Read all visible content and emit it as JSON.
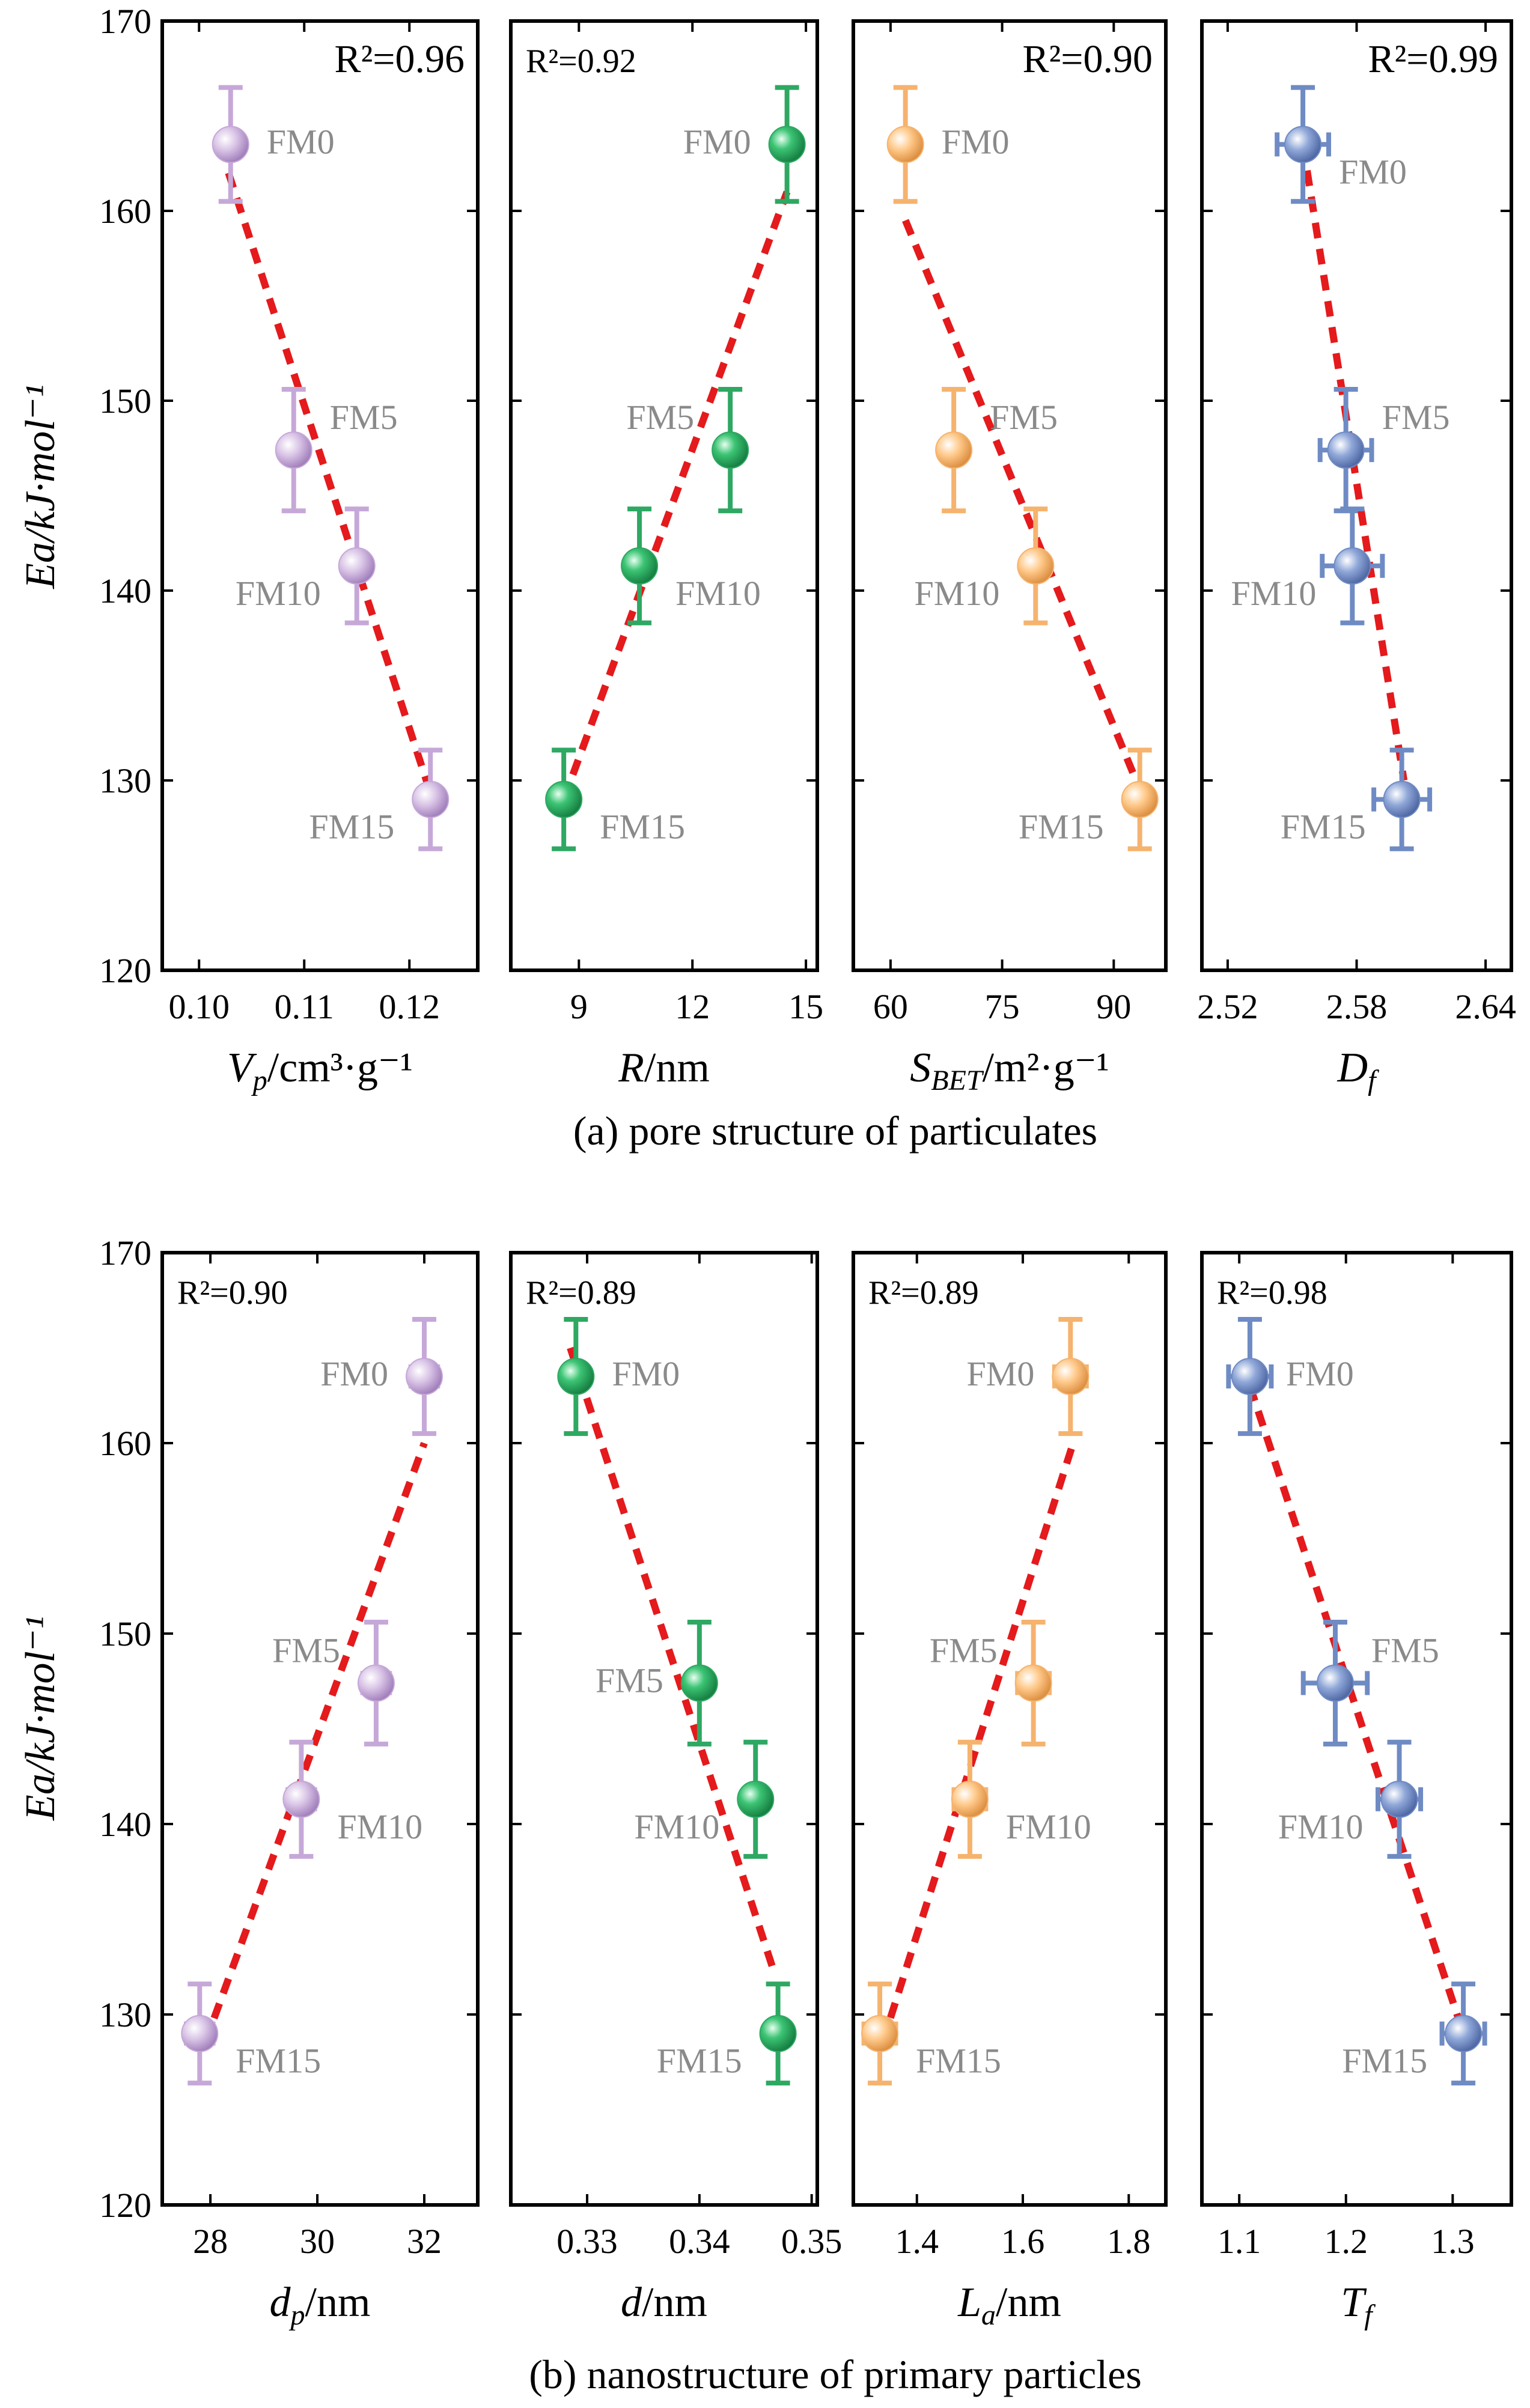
{
  "figure": {
    "y_axis_label": "Ea/kJ·mol⁻¹",
    "colors": {
      "purple": "#c6a8d8",
      "green": "#2ea862",
      "orange": "#f5b36e",
      "blue": "#6f8bc4",
      "fit_line": "#e41a1c"
    }
  },
  "rows": [
    {
      "caption": "(a)  pore structure of particulates",
      "ylim": [
        120,
        170
      ],
      "yticks": [
        120,
        130,
        140,
        150,
        160,
        170
      ],
      "panels": [
        {
          "color": "purple",
          "xlabel": "V_p/cm³·g⁻¹",
          "xlabel_main": "V",
          "xlabel_sub": "p",
          "xlabel_rest": "/cm³·g⁻¹",
          "xlim": [
            0.0965,
            0.1265
          ],
          "xticks": [
            0.1,
            0.11,
            0.12
          ],
          "xtick_labels": [
            "0.10",
            "0.11",
            "0.12"
          ],
          "r2": "R²=0.96",
          "r2_big": true,
          "fit": [
            [
              0.1028,
              162
            ],
            [
              0.1222,
              129
            ]
          ]
        },
        {
          "color": "green",
          "xlabel": "R/nm",
          "xlabel_main": "R",
          "xlabel_sub": "",
          "xlabel_rest": "/nm",
          "xlim": [
            7.2,
            15.3
          ],
          "xticks": [
            9,
            12,
            15
          ],
          "xtick_labels": [
            "9",
            "12",
            "15"
          ],
          "r2": "R²=0.92",
          "r2_big": false,
          "fit": [
            [
              8.6,
              129
            ],
            [
              14.5,
              161
            ]
          ]
        },
        {
          "color": "orange",
          "xlabel": "S_BET/m²·g⁻¹",
          "xlabel_main": "S",
          "xlabel_sub": "BET",
          "xlabel_rest": "/m²·g⁻¹",
          "xlim": [
            55,
            97
          ],
          "xticks": [
            60,
            75,
            90
          ],
          "xtick_labels": [
            "60",
            "75",
            "90"
          ],
          "r2": "R²=0.90",
          "r2_big": true,
          "fit": [
            [
              62,
              159.5
            ],
            [
              93,
              130
            ]
          ]
        },
        {
          "color": "blue",
          "xlabel": "D_f",
          "xlabel_main": "D",
          "xlabel_sub": "f",
          "xlabel_rest": "",
          "xlim": [
            2.508,
            2.652
          ],
          "xticks": [
            2.52,
            2.58,
            2.64
          ],
          "xtick_labels": [
            "2.52",
            "2.58",
            "2.64"
          ],
          "r2": "R²=0.99",
          "r2_big": true,
          "fit": [
            [
              2.555,
              163.5
            ],
            [
              2.602,
              130
            ]
          ]
        }
      ]
    },
    {
      "caption": "(b)  nanostructure of primary particles",
      "ylim": [
        120,
        170
      ],
      "yticks": [
        120,
        130,
        140,
        150,
        160,
        170
      ],
      "panels": [
        {
          "color": "purple",
          "xlabel": "d_p/nm",
          "xlabel_main": "d",
          "xlabel_sub": "p",
          "xlabel_rest": "/nm",
          "xlim": [
            27.1,
            33.0
          ],
          "xticks": [
            28,
            30,
            32
          ],
          "xtick_labels": [
            "28",
            "30",
            "32"
          ],
          "r2": "R²=0.90",
          "r2_big": false,
          "fit": [
            [
              27.9,
              128.5
            ],
            [
              32.0,
              160
            ]
          ]
        },
        {
          "color": "green",
          "xlabel": "d/nm",
          "xlabel_main": "d",
          "xlabel_sub": "",
          "xlabel_rest": "/nm",
          "xlim": [
            0.3232,
            0.3505
          ],
          "xticks": [
            0.33,
            0.34,
            0.35
          ],
          "xtick_labels": [
            "0.33",
            "0.34",
            "0.35"
          ],
          "r2": "R²=0.89",
          "r2_big": false,
          "fit": [
            [
              0.3285,
              165
            ],
            [
              0.3465,
              132.5
            ]
          ]
        },
        {
          "color": "orange",
          "xlabel": "L_a/nm",
          "xlabel_main": "L",
          "xlabel_sub": "a",
          "xlabel_rest": "/nm",
          "xlim": [
            1.28,
            1.87
          ],
          "xticks": [
            1.4,
            1.6,
            1.8
          ],
          "xtick_labels": [
            "1.4",
            "1.6",
            "1.8"
          ],
          "r2": "R²=0.89",
          "r2_big": false,
          "fit": [
            [
              1.335,
              128.5
            ],
            [
              1.695,
              160
            ]
          ]
        },
        {
          "color": "blue",
          "xlabel": "T_f",
          "xlabel_main": "T",
          "xlabel_sub": "f",
          "xlabel_rest": "",
          "xlim": [
            1.065,
            1.355
          ],
          "xticks": [
            1.1,
            1.2,
            1.3
          ],
          "xtick_labels": [
            "1.1",
            "1.2",
            "1.3"
          ],
          "r2": "R²=0.98",
          "r2_big": false,
          "fit": [
            [
              1.11,
              163
            ],
            [
              1.31,
              129
            ]
          ]
        }
      ]
    }
  ],
  "chart_data": [
    {
      "type": "scatter",
      "title": "(a) pore structure of particulates",
      "xlabel": "Vp/cm³·g⁻¹",
      "ylabel": "Ea/kJ·mol⁻¹",
      "r2": 0.96,
      "points": [
        {
          "label": "FM0",
          "x": 0.103,
          "y": 163.5,
          "xerr": 0.0007,
          "yerr": 3.0,
          "label_pos": "right"
        },
        {
          "label": "FM5",
          "x": 0.109,
          "y": 147.4,
          "xerr": 0.0007,
          "yerr": 3.2,
          "label_pos": "upper-right"
        },
        {
          "label": "FM10",
          "x": 0.115,
          "y": 141.3,
          "xerr": 0.0007,
          "yerr": 3.0,
          "label_pos": "lower-left"
        },
        {
          "label": "FM15",
          "x": 0.122,
          "y": 129.0,
          "xerr": 0.0007,
          "yerr": 2.6,
          "label_pos": "lower-left"
        }
      ]
    },
    {
      "type": "scatter",
      "xlabel": "R/nm",
      "ylabel": "Ea/kJ·mol⁻¹",
      "r2": 0.92,
      "points": [
        {
          "label": "FM0",
          "x": 14.5,
          "y": 163.5,
          "xerr": 0,
          "yerr": 3.0,
          "label_pos": "left"
        },
        {
          "label": "FM5",
          "x": 13.0,
          "y": 147.4,
          "xerr": 0,
          "yerr": 3.2,
          "label_pos": "upper-left"
        },
        {
          "label": "FM10",
          "x": 10.6,
          "y": 141.3,
          "xerr": 0,
          "yerr": 3.0,
          "label_pos": "lower-right"
        },
        {
          "label": "FM15",
          "x": 8.6,
          "y": 129.0,
          "xerr": 0,
          "yerr": 2.6,
          "label_pos": "lower-right"
        }
      ]
    },
    {
      "type": "scatter",
      "xlabel": "S_BET/m²·g⁻¹",
      "ylabel": "Ea/kJ·mol⁻¹",
      "r2": 0.9,
      "points": [
        {
          "label": "FM0",
          "x": 62.0,
          "y": 163.5,
          "xerr": 0,
          "yerr": 3.0,
          "label_pos": "right"
        },
        {
          "label": "FM5",
          "x": 68.5,
          "y": 147.4,
          "xerr": 0,
          "yerr": 3.2,
          "label_pos": "upper-right"
        },
        {
          "label": "FM10",
          "x": 79.5,
          "y": 141.3,
          "xerr": 0,
          "yerr": 3.0,
          "label_pos": "lower-left"
        },
        {
          "label": "FM15",
          "x": 93.5,
          "y": 129.0,
          "xerr": 0,
          "yerr": 2.6,
          "label_pos": "lower-left"
        }
      ]
    },
    {
      "type": "scatter",
      "xlabel": "D_f",
      "ylabel": "Ea/kJ·mol⁻¹",
      "r2": 0.99,
      "points": [
        {
          "label": "FM0",
          "x": 2.555,
          "y": 163.5,
          "xerr": 0.012,
          "yerr": 3.0,
          "label_pos": "lower-right"
        },
        {
          "label": "FM5",
          "x": 2.575,
          "y": 147.4,
          "xerr": 0.012,
          "yerr": 3.2,
          "label_pos": "upper-right"
        },
        {
          "label": "FM10",
          "x": 2.578,
          "y": 141.3,
          "xerr": 0.014,
          "yerr": 3.0,
          "label_pos": "lower-left"
        },
        {
          "label": "FM15",
          "x": 2.601,
          "y": 129.0,
          "xerr": 0.013,
          "yerr": 2.6,
          "label_pos": "lower-left"
        }
      ]
    },
    {
      "type": "scatter",
      "title": "(b) nanostructure of primary particles",
      "xlabel": "dp/nm",
      "ylabel": "Ea/kJ·mol⁻¹",
      "r2": 0.9,
      "points": [
        {
          "label": "FM0",
          "x": 32.0,
          "y": 163.5,
          "xerr": 0.25,
          "yerr": 3.0,
          "label_pos": "left"
        },
        {
          "label": "FM5",
          "x": 31.1,
          "y": 147.4,
          "xerr": 0.25,
          "yerr": 3.2,
          "label_pos": "upper-left"
        },
        {
          "label": "FM10",
          "x": 29.7,
          "y": 141.3,
          "xerr": 0.25,
          "yerr": 3.0,
          "label_pos": "lower-right"
        },
        {
          "label": "FM15",
          "x": 27.8,
          "y": 129.0,
          "xerr": 0.25,
          "yerr": 2.6,
          "label_pos": "lower-right"
        }
      ]
    },
    {
      "type": "scatter",
      "xlabel": "d/nm",
      "ylabel": "Ea/kJ·mol⁻¹",
      "r2": 0.89,
      "points": [
        {
          "label": "FM0",
          "x": 0.329,
          "y": 163.5,
          "xerr": 0.0007,
          "yerr": 3.0,
          "label_pos": "right"
        },
        {
          "label": "FM5",
          "x": 0.34,
          "y": 147.4,
          "xerr": 0.0007,
          "yerr": 3.2,
          "label_pos": "left"
        },
        {
          "label": "FM10",
          "x": 0.345,
          "y": 141.3,
          "xerr": 0.0007,
          "yerr": 3.0,
          "label_pos": "lower-left"
        },
        {
          "label": "FM15",
          "x": 0.347,
          "y": 129.0,
          "xerr": 0.0007,
          "yerr": 2.6,
          "label_pos": "lower-left"
        }
      ]
    },
    {
      "type": "scatter",
      "xlabel": "La/nm",
      "ylabel": "Ea/kJ·mol⁻¹",
      "r2": 0.89,
      "points": [
        {
          "label": "FM0",
          "x": 1.69,
          "y": 163.5,
          "xerr": 0.03,
          "yerr": 3.0,
          "label_pos": "left"
        },
        {
          "label": "FM5",
          "x": 1.62,
          "y": 147.4,
          "xerr": 0.03,
          "yerr": 3.2,
          "label_pos": "upper-left"
        },
        {
          "label": "FM10",
          "x": 1.5,
          "y": 141.3,
          "xerr": 0.03,
          "yerr": 3.0,
          "label_pos": "lower-right"
        },
        {
          "label": "FM15",
          "x": 1.33,
          "y": 129.0,
          "xerr": 0.03,
          "yerr": 2.6,
          "label_pos": "lower-right"
        }
      ]
    },
    {
      "type": "scatter",
      "xlabel": "Tf",
      "ylabel": "Ea/kJ·mol⁻¹",
      "r2": 0.98,
      "points": [
        {
          "label": "FM0",
          "x": 1.11,
          "y": 163.5,
          "xerr": 0.02,
          "yerr": 3.0,
          "label_pos": "right"
        },
        {
          "label": "FM5",
          "x": 1.19,
          "y": 147.4,
          "xerr": 0.03,
          "yerr": 3.2,
          "label_pos": "upper-right"
        },
        {
          "label": "FM10",
          "x": 1.25,
          "y": 141.3,
          "xerr": 0.02,
          "yerr": 3.0,
          "label_pos": "lower-left"
        },
        {
          "label": "FM15",
          "x": 1.31,
          "y": 129.0,
          "xerr": 0.02,
          "yerr": 2.6,
          "label_pos": "lower-left"
        }
      ]
    }
  ]
}
